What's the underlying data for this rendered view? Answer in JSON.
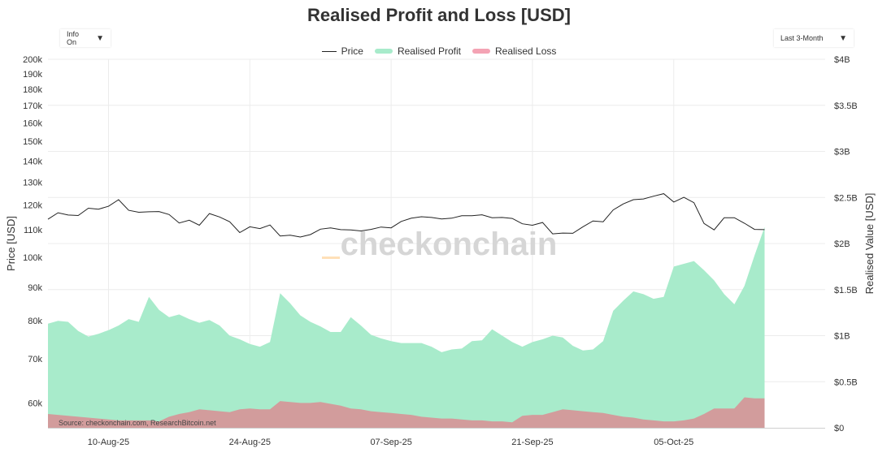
{
  "title": "Realised Profit and Loss [USD]",
  "controls": {
    "info": {
      "label": "Info On"
    },
    "range": {
      "label": "Last 3-Month"
    }
  },
  "watermark": "checkonchain",
  "source": "Source: checkonchain.com, ResearchBitcoin.net",
  "colors": {
    "price": "#222222",
    "profit": "#a8ebcb",
    "loss": "#d29c9c",
    "loss_legend": "#f4a3b4",
    "grid": "#ececec"
  },
  "chart_data": {
    "type": "area",
    "title": "Realised Profit and Loss [USD]",
    "xlabel": "",
    "ylabel": "Price [USD]",
    "y2label": "Realised Value [USD]",
    "x_start": "2025-08-04",
    "x_end": "2025-10-20",
    "x_ticks": [
      {
        "date": "2025-08-10",
        "label": "10-Aug-25"
      },
      {
        "date": "2025-08-24",
        "label": "24-Aug-25"
      },
      {
        "date": "2025-09-07",
        "label": "07-Sep-25"
      },
      {
        "date": "2025-09-21",
        "label": "21-Sep-25"
      },
      {
        "date": "2025-10-05",
        "label": "05-Oct-25"
      }
    ],
    "y_scale": "log",
    "ylim": [
      55000,
      200000
    ],
    "y_ticks": [
      {
        "value": 60000,
        "label": "60k"
      },
      {
        "value": 70000,
        "label": "70k"
      },
      {
        "value": 80000,
        "label": "80k"
      },
      {
        "value": 90000,
        "label": "90k"
      },
      {
        "value": 100000,
        "label": "100k"
      },
      {
        "value": 110000,
        "label": "110k"
      },
      {
        "value": 120000,
        "label": "120k"
      },
      {
        "value": 130000,
        "label": "130k"
      },
      {
        "value": 140000,
        "label": "140k"
      },
      {
        "value": 150000,
        "label": "150k"
      },
      {
        "value": 160000,
        "label": "160k"
      },
      {
        "value": 170000,
        "label": "170k"
      },
      {
        "value": 180000,
        "label": "180k"
      },
      {
        "value": 190000,
        "label": "190k"
      },
      {
        "value": 200000,
        "label": "200k"
      }
    ],
    "y2lim": [
      0,
      4
    ],
    "y2_ticks": [
      {
        "value": 0,
        "label": "$0"
      },
      {
        "value": 0.5,
        "label": "$0.5B"
      },
      {
        "value": 1,
        "label": "$1B"
      },
      {
        "value": 1.5,
        "label": "$1.5B"
      },
      {
        "value": 2,
        "label": "$2B"
      },
      {
        "value": 2.5,
        "label": "$2.5B"
      },
      {
        "value": 3,
        "label": "$3B"
      },
      {
        "value": 3.5,
        "label": "$3.5B"
      },
      {
        "value": 4,
        "label": "$4B"
      }
    ],
    "legend_position": "top-center",
    "grid": true,
    "series": [
      {
        "name": "Price",
        "axis": "left",
        "type": "line",
        "points": [
          [
            "2025-08-04",
            114200
          ],
          [
            "2025-08-05",
            116800
          ],
          [
            "2025-08-06",
            115900
          ],
          [
            "2025-08-07",
            115700
          ],
          [
            "2025-08-08",
            118700
          ],
          [
            "2025-08-09",
            118300
          ],
          [
            "2025-08-10",
            119500
          ],
          [
            "2025-08-11",
            122300
          ],
          [
            "2025-08-12",
            117800
          ],
          [
            "2025-08-13",
            117000
          ],
          [
            "2025-08-14",
            117200
          ],
          [
            "2025-08-15",
            117300
          ],
          [
            "2025-08-16",
            116100
          ],
          [
            "2025-08-17",
            112700
          ],
          [
            "2025-08-18",
            113800
          ],
          [
            "2025-08-19",
            111800
          ],
          [
            "2025-08-20",
            116500
          ],
          [
            "2025-08-21",
            115100
          ],
          [
            "2025-08-22",
            113200
          ],
          [
            "2025-08-23",
            109000
          ],
          [
            "2025-08-24",
            111200
          ],
          [
            "2025-08-25",
            110500
          ],
          [
            "2025-08-26",
            111900
          ],
          [
            "2025-08-27",
            107700
          ],
          [
            "2025-08-28",
            108000
          ],
          [
            "2025-08-29",
            107300
          ],
          [
            "2025-08-30",
            108200
          ],
          [
            "2025-08-31",
            110300
          ],
          [
            "2025-09-01",
            110800
          ],
          [
            "2025-09-02",
            110100
          ],
          [
            "2025-09-03",
            110000
          ],
          [
            "2025-09-04",
            109600
          ],
          [
            "2025-09-05",
            110200
          ],
          [
            "2025-09-06",
            111100
          ],
          [
            "2025-09-07",
            110800
          ],
          [
            "2025-09-08",
            113300
          ],
          [
            "2025-09-09",
            114600
          ],
          [
            "2025-09-10",
            115200
          ],
          [
            "2025-09-11",
            114900
          ],
          [
            "2025-09-12",
            114300
          ],
          [
            "2025-09-13",
            114600
          ],
          [
            "2025-09-14",
            115600
          ],
          [
            "2025-09-15",
            115600
          ],
          [
            "2025-09-16",
            116000
          ],
          [
            "2025-09-17",
            114800
          ],
          [
            "2025-09-18",
            114900
          ],
          [
            "2025-09-19",
            114500
          ],
          [
            "2025-09-20",
            112400
          ],
          [
            "2025-09-21",
            111800
          ],
          [
            "2025-09-22",
            112900
          ],
          [
            "2025-09-23",
            108500
          ],
          [
            "2025-09-24",
            108800
          ],
          [
            "2025-09-25",
            108700
          ],
          [
            "2025-09-26",
            111200
          ],
          [
            "2025-09-27",
            113500
          ],
          [
            "2025-09-28",
            113200
          ],
          [
            "2025-09-29",
            118000
          ],
          [
            "2025-09-30",
            120500
          ],
          [
            "2025-10-01",
            122300
          ],
          [
            "2025-10-02",
            122600
          ],
          [
            "2025-10-03",
            123800
          ],
          [
            "2025-10-04",
            124900
          ],
          [
            "2025-10-05",
            121300
          ],
          [
            "2025-10-06",
            123300
          ],
          [
            "2025-10-07",
            121000
          ],
          [
            "2025-10-08",
            112500
          ],
          [
            "2025-10-09",
            110000
          ],
          [
            "2025-10-10",
            114800
          ],
          [
            "2025-10-11",
            114800
          ],
          [
            "2025-10-12",
            112600
          ],
          [
            "2025-10-13",
            110200
          ],
          [
            "2025-10-14",
            110100
          ]
        ]
      },
      {
        "name": "Realised Profit",
        "axis": "right",
        "type": "area",
        "points": [
          [
            "2025-08-04",
            1.13
          ],
          [
            "2025-08-05",
            1.16
          ],
          [
            "2025-08-06",
            1.15
          ],
          [
            "2025-08-07",
            1.05
          ],
          [
            "2025-08-08",
            0.99
          ],
          [
            "2025-08-09",
            1.02
          ],
          [
            "2025-08-10",
            1.06
          ],
          [
            "2025-08-11",
            1.11
          ],
          [
            "2025-08-12",
            1.18
          ],
          [
            "2025-08-13",
            1.15
          ],
          [
            "2025-08-14",
            1.42
          ],
          [
            "2025-08-15",
            1.28
          ],
          [
            "2025-08-16",
            1.2
          ],
          [
            "2025-08-17",
            1.23
          ],
          [
            "2025-08-18",
            1.18
          ],
          [
            "2025-08-19",
            1.14
          ],
          [
            "2025-08-20",
            1.17
          ],
          [
            "2025-08-21",
            1.11
          ],
          [
            "2025-08-22",
            1.0
          ],
          [
            "2025-08-23",
            0.96
          ],
          [
            "2025-08-24",
            0.91
          ],
          [
            "2025-08-25",
            0.88
          ],
          [
            "2025-08-26",
            0.93
          ],
          [
            "2025-08-27",
            1.46
          ],
          [
            "2025-08-28",
            1.35
          ],
          [
            "2025-08-29",
            1.22
          ],
          [
            "2025-08-30",
            1.15
          ],
          [
            "2025-08-31",
            1.1
          ],
          [
            "2025-09-01",
            1.04
          ],
          [
            "2025-09-02",
            1.04
          ],
          [
            "2025-09-03",
            1.2
          ],
          [
            "2025-09-04",
            1.11
          ],
          [
            "2025-09-05",
            1.01
          ],
          [
            "2025-09-06",
            0.97
          ],
          [
            "2025-09-07",
            0.94
          ],
          [
            "2025-09-08",
            0.92
          ],
          [
            "2025-09-09",
            0.92
          ],
          [
            "2025-09-10",
            0.92
          ],
          [
            "2025-09-11",
            0.88
          ],
          [
            "2025-09-12",
            0.82
          ],
          [
            "2025-09-13",
            0.85
          ],
          [
            "2025-09-14",
            0.86
          ],
          [
            "2025-09-15",
            0.94
          ],
          [
            "2025-09-16",
            0.95
          ],
          [
            "2025-09-17",
            1.07
          ],
          [
            "2025-09-18",
            1.0
          ],
          [
            "2025-09-19",
            0.93
          ],
          [
            "2025-09-20",
            0.88
          ],
          [
            "2025-09-21",
            0.93
          ],
          [
            "2025-09-22",
            0.96
          ],
          [
            "2025-09-23",
            1.0
          ],
          [
            "2025-09-24",
            0.98
          ],
          [
            "2025-09-25",
            0.89
          ],
          [
            "2025-09-26",
            0.84
          ],
          [
            "2025-09-27",
            0.85
          ],
          [
            "2025-09-28",
            0.94
          ],
          [
            "2025-09-29",
            1.27
          ],
          [
            "2025-09-30",
            1.38
          ],
          [
            "2025-10-01",
            1.48
          ],
          [
            "2025-10-02",
            1.45
          ],
          [
            "2025-10-03",
            1.4
          ],
          [
            "2025-10-04",
            1.42
          ],
          [
            "2025-10-05",
            1.75
          ],
          [
            "2025-10-06",
            1.78
          ],
          [
            "2025-10-07",
            1.81
          ],
          [
            "2025-10-08",
            1.71
          ],
          [
            "2025-10-09",
            1.6
          ],
          [
            "2025-10-10",
            1.45
          ],
          [
            "2025-10-11",
            1.34
          ],
          [
            "2025-10-12",
            1.54
          ],
          [
            "2025-10-13",
            1.87
          ],
          [
            "2025-10-14",
            2.18
          ]
        ]
      },
      {
        "name": "Realised Loss",
        "axis": "right",
        "type": "area",
        "points": [
          [
            "2025-08-04",
            0.15
          ],
          [
            "2025-08-05",
            0.14
          ],
          [
            "2025-08-06",
            0.13
          ],
          [
            "2025-08-07",
            0.12
          ],
          [
            "2025-08-08",
            0.11
          ],
          [
            "2025-08-09",
            0.1
          ],
          [
            "2025-08-10",
            0.09
          ],
          [
            "2025-08-11",
            0.08
          ],
          [
            "2025-08-12",
            0.08
          ],
          [
            "2025-08-13",
            0.08
          ],
          [
            "2025-08-14",
            0.08
          ],
          [
            "2025-08-15",
            0.07
          ],
          [
            "2025-08-16",
            0.12
          ],
          [
            "2025-08-17",
            0.15
          ],
          [
            "2025-08-18",
            0.17
          ],
          [
            "2025-08-19",
            0.2
          ],
          [
            "2025-08-20",
            0.19
          ],
          [
            "2025-08-21",
            0.18
          ],
          [
            "2025-08-22",
            0.17
          ],
          [
            "2025-08-23",
            0.2
          ],
          [
            "2025-08-24",
            0.21
          ],
          [
            "2025-08-25",
            0.2
          ],
          [
            "2025-08-26",
            0.2
          ],
          [
            "2025-08-27",
            0.29
          ],
          [
            "2025-08-28",
            0.28
          ],
          [
            "2025-08-29",
            0.27
          ],
          [
            "2025-08-30",
            0.27
          ],
          [
            "2025-08-31",
            0.28
          ],
          [
            "2025-09-01",
            0.26
          ],
          [
            "2025-09-02",
            0.24
          ],
          [
            "2025-09-03",
            0.21
          ],
          [
            "2025-09-04",
            0.2
          ],
          [
            "2025-09-05",
            0.18
          ],
          [
            "2025-09-06",
            0.17
          ],
          [
            "2025-09-07",
            0.16
          ],
          [
            "2025-09-08",
            0.15
          ],
          [
            "2025-09-09",
            0.14
          ],
          [
            "2025-09-10",
            0.12
          ],
          [
            "2025-09-11",
            0.11
          ],
          [
            "2025-09-12",
            0.1
          ],
          [
            "2025-09-13",
            0.1
          ],
          [
            "2025-09-14",
            0.09
          ],
          [
            "2025-09-15",
            0.08
          ],
          [
            "2025-09-16",
            0.08
          ],
          [
            "2025-09-17",
            0.07
          ],
          [
            "2025-09-18",
            0.07
          ],
          [
            "2025-09-19",
            0.06
          ],
          [
            "2025-09-20",
            0.13
          ],
          [
            "2025-09-21",
            0.14
          ],
          [
            "2025-09-22",
            0.14
          ],
          [
            "2025-09-23",
            0.17
          ],
          [
            "2025-09-24",
            0.2
          ],
          [
            "2025-09-25",
            0.19
          ],
          [
            "2025-09-26",
            0.18
          ],
          [
            "2025-09-27",
            0.17
          ],
          [
            "2025-09-28",
            0.16
          ],
          [
            "2025-09-29",
            0.14
          ],
          [
            "2025-09-30",
            0.12
          ],
          [
            "2025-10-01",
            0.11
          ],
          [
            "2025-10-02",
            0.09
          ],
          [
            "2025-10-03",
            0.08
          ],
          [
            "2025-10-04",
            0.07
          ],
          [
            "2025-10-05",
            0.07
          ],
          [
            "2025-10-06",
            0.08
          ],
          [
            "2025-10-07",
            0.1
          ],
          [
            "2025-10-08",
            0.15
          ],
          [
            "2025-10-09",
            0.21
          ],
          [
            "2025-10-10",
            0.21
          ],
          [
            "2025-10-11",
            0.21
          ],
          [
            "2025-10-12",
            0.33
          ],
          [
            "2025-10-13",
            0.32
          ],
          [
            "2025-10-14",
            0.32
          ]
        ]
      }
    ]
  }
}
